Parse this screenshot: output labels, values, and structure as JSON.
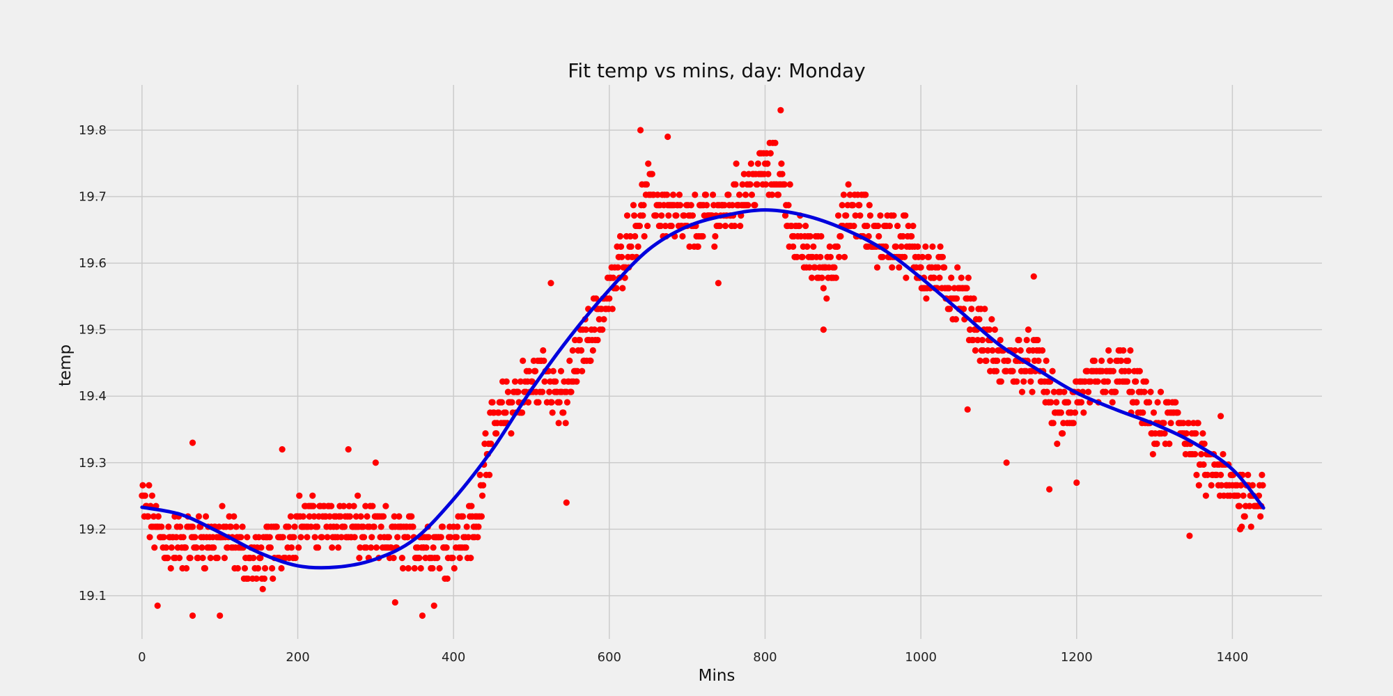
{
  "chart_data": {
    "type": "scatter",
    "title": "Fit temp vs mins, day: Monday",
    "xlabel": "Mins",
    "ylabel": "temp",
    "xlim": [
      -75,
      1515
    ],
    "ylim": [
      19.035,
      19.868
    ],
    "xticks": [
      0,
      200,
      400,
      600,
      800,
      1000,
      1200,
      1400
    ],
    "yticks": [
      19.1,
      19.2,
      19.3,
      19.4,
      19.5,
      19.6,
      19.7,
      19.8
    ],
    "grid": true,
    "background_color": "#f0f0f0",
    "grid_color": "#cbcbcb",
    "series": [
      {
        "kind": "scatter",
        "color": "#ff0000",
        "profile": [
          [
            0,
            19.24
          ],
          [
            30,
            19.18
          ],
          [
            60,
            19.18
          ],
          [
            100,
            19.19
          ],
          [
            150,
            19.15
          ],
          [
            200,
            19.21
          ],
          [
            250,
            19.21
          ],
          [
            300,
            19.19
          ],
          [
            350,
            19.18
          ],
          [
            400,
            19.18
          ],
          [
            430,
            19.2
          ],
          [
            440,
            19.32
          ],
          [
            460,
            19.37
          ],
          [
            500,
            19.42
          ],
          [
            520,
            19.44
          ],
          [
            540,
            19.38
          ],
          [
            560,
            19.46
          ],
          [
            600,
            19.55
          ],
          [
            620,
            19.62
          ],
          [
            650,
            19.7
          ],
          [
            700,
            19.65
          ],
          [
            750,
            19.68
          ],
          [
            800,
            19.74
          ],
          [
            820,
            19.73
          ],
          [
            840,
            19.63
          ],
          [
            880,
            19.59
          ],
          [
            910,
            19.68
          ],
          [
            940,
            19.64
          ],
          [
            980,
            19.63
          ],
          [
            1000,
            19.6
          ],
          [
            1050,
            19.55
          ],
          [
            1100,
            19.45
          ],
          [
            1150,
            19.45
          ],
          [
            1180,
            19.36
          ],
          [
            1200,
            19.4
          ],
          [
            1230,
            19.42
          ],
          [
            1260,
            19.44
          ],
          [
            1300,
            19.35
          ],
          [
            1330,
            19.37
          ],
          [
            1360,
            19.3
          ],
          [
            1400,
            19.26
          ],
          [
            1440,
            19.25
          ]
        ],
        "spread": 0.035,
        "n_points": 1440,
        "outliers": [
          [
            65,
            19.33
          ],
          [
            65,
            19.07
          ],
          [
            100,
            19.07
          ],
          [
            20,
            19.085
          ],
          [
            180,
            19.32
          ],
          [
            265,
            19.32
          ],
          [
            300,
            19.3
          ],
          [
            325,
            19.09
          ],
          [
            360,
            19.07
          ],
          [
            375,
            19.085
          ],
          [
            525,
            19.57
          ],
          [
            545,
            19.24
          ],
          [
            640,
            19.8
          ],
          [
            675,
            19.79
          ],
          [
            740,
            19.57
          ],
          [
            820,
            19.83
          ],
          [
            875,
            19.5
          ],
          [
            1060,
            19.38
          ],
          [
            1110,
            19.3
          ],
          [
            1145,
            19.58
          ],
          [
            1165,
            19.26
          ],
          [
            1200,
            19.27
          ],
          [
            1345,
            19.19
          ],
          [
            1385,
            19.37
          ],
          [
            1410,
            19.2
          ]
        ]
      },
      {
        "kind": "line",
        "color": "#0000dd",
        "points": [
          [
            0,
            19.233
          ],
          [
            50,
            19.222
          ],
          [
            100,
            19.195
          ],
          [
            150,
            19.165
          ],
          [
            200,
            19.145
          ],
          [
            250,
            19.143
          ],
          [
            300,
            19.155
          ],
          [
            350,
            19.185
          ],
          [
            400,
            19.245
          ],
          [
            450,
            19.32
          ],
          [
            500,
            19.41
          ],
          [
            550,
            19.49
          ],
          [
            600,
            19.56
          ],
          [
            650,
            19.62
          ],
          [
            700,
            19.655
          ],
          [
            750,
            19.672
          ],
          [
            800,
            19.68
          ],
          [
            850,
            19.672
          ],
          [
            900,
            19.652
          ],
          [
            950,
            19.622
          ],
          [
            1000,
            19.578
          ],
          [
            1050,
            19.528
          ],
          [
            1100,
            19.478
          ],
          [
            1150,
            19.44
          ],
          [
            1200,
            19.405
          ],
          [
            1250,
            19.38
          ],
          [
            1300,
            19.358
          ],
          [
            1350,
            19.33
          ],
          [
            1400,
            19.29
          ],
          [
            1440,
            19.232
          ]
        ]
      }
    ]
  }
}
